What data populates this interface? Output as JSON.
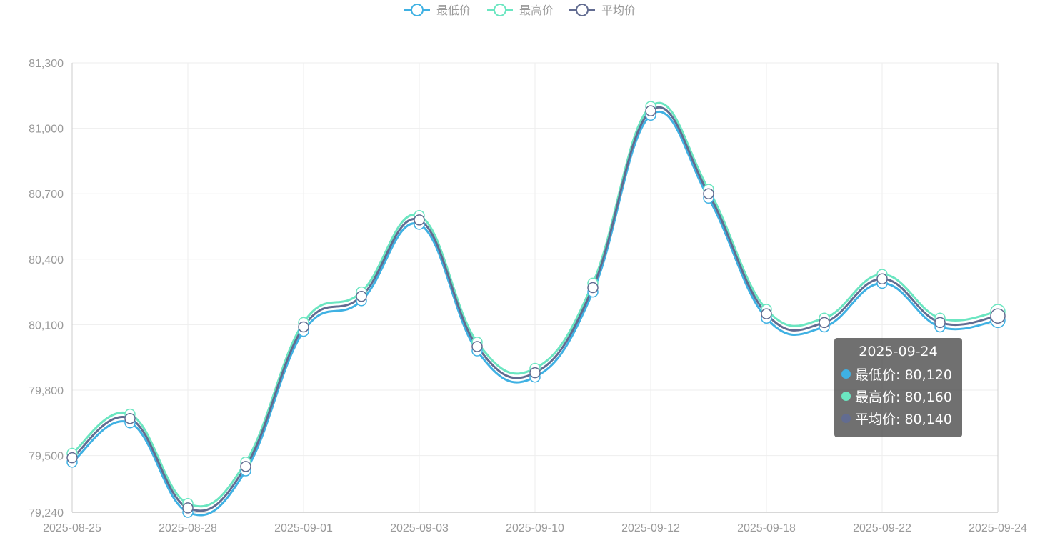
{
  "chart_data": {
    "type": "line",
    "smooth": true,
    "x_tick_labels": [
      "2025-08-25",
      "2025-08-28",
      "2025-09-01",
      "2025-09-03",
      "2025-09-10",
      "2025-09-12",
      "2025-09-18",
      "2025-09-22",
      "2025-09-24"
    ],
    "point_count": 17,
    "ylim": [
      79240,
      81300
    ],
    "y_ticks": [
      79240,
      79500,
      79800,
      80100,
      80400,
      80700,
      81000,
      81300
    ],
    "y_tick_labels": [
      "79,240",
      "79,500",
      "79,800",
      "80,100",
      "80,400",
      "80,700",
      "81,000",
      "81,300"
    ],
    "grid": true,
    "legend_position": "top",
    "series": [
      {
        "name": "最低价",
        "color": "#3fb1e3",
        "values": [
          79470,
          79650,
          79240,
          79430,
          80070,
          80210,
          80560,
          79980,
          79860,
          80250,
          81060,
          80680,
          80130,
          80090,
          80290,
          80090,
          80120
        ]
      },
      {
        "name": "最高价",
        "color": "#6be6c1",
        "values": [
          79510,
          79690,
          79280,
          79470,
          80110,
          80250,
          80600,
          80020,
          79900,
          80290,
          81100,
          80720,
          80170,
          80130,
          80330,
          80130,
          80160
        ]
      },
      {
        "name": "平均价",
        "color": "#626c91",
        "values": [
          79490,
          79670,
          79260,
          79450,
          80090,
          80230,
          80580,
          80000,
          79880,
          80270,
          81080,
          80700,
          80150,
          80110,
          80310,
          80110,
          80140
        ]
      }
    ]
  },
  "tooltip": {
    "title": "2025-09-24",
    "rows": [
      {
        "label": "最低价: 80,120",
        "color": "#3fb1e3"
      },
      {
        "label": "最高价: 80,160",
        "color": "#6be6c1"
      },
      {
        "label": "平均价: 80,140",
        "color": "#626c91"
      }
    ]
  }
}
